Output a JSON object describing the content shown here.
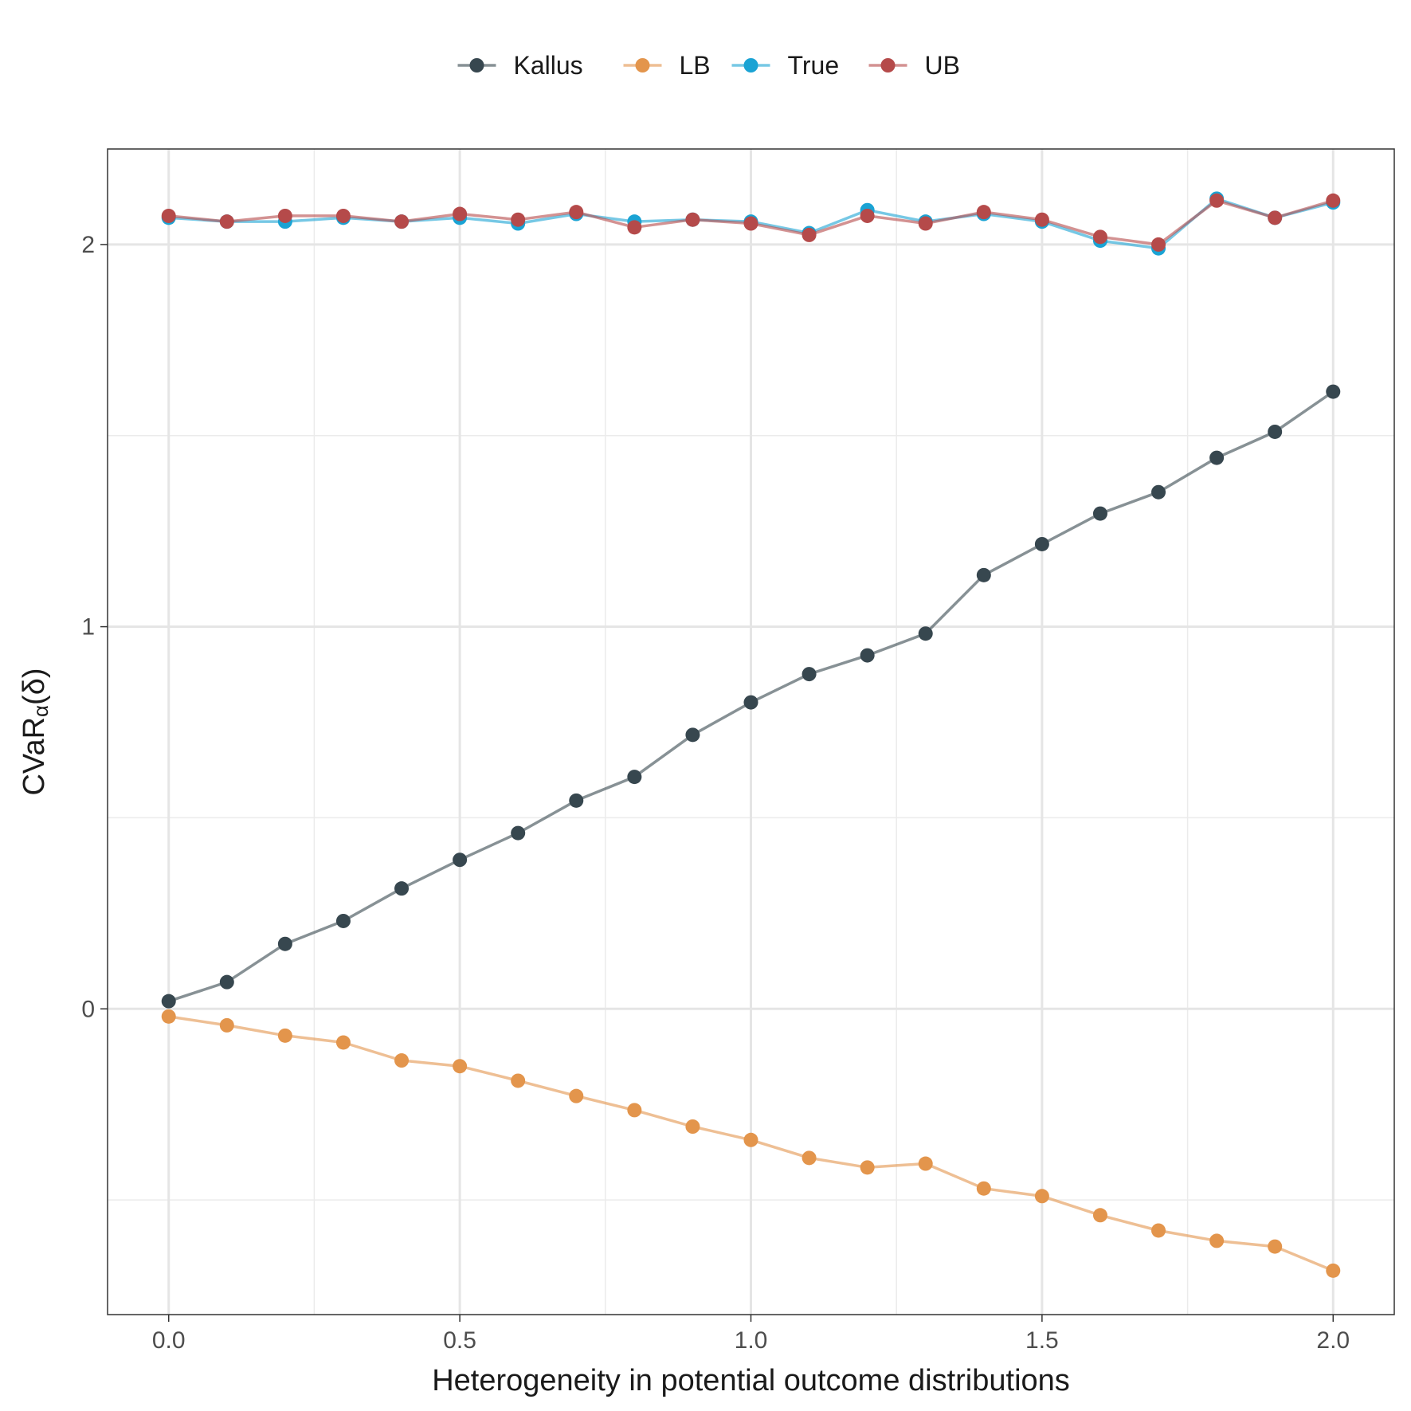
{
  "chart_data": {
    "type": "line",
    "xlabel": "Heterogeneity in potential outcome distributions",
    "ylabel_main": "CVaR",
    "ylabel_sub": "α",
    "ylabel_arg": "(δ)",
    "xlim": [
      -0.105,
      2.105
    ],
    "ylim": [
      -0.8,
      2.25
    ],
    "x_ticks": [
      0.0,
      0.5,
      1.0,
      1.5,
      2.0
    ],
    "x_tick_labels": [
      "0.0",
      "0.5",
      "1.0",
      "1.5",
      "2.0"
    ],
    "y_ticks": [
      0,
      1,
      2
    ],
    "y_tick_labels": [
      "0",
      "1",
      "2"
    ],
    "grid": true,
    "legend_position": "top",
    "x": [
      0.0,
      0.1,
      0.2,
      0.3,
      0.4,
      0.5,
      0.6,
      0.7,
      0.8,
      0.9,
      1.0,
      1.1,
      1.2,
      1.3,
      1.4,
      1.5,
      1.6,
      1.7,
      1.8,
      1.9,
      2.0
    ],
    "series": [
      {
        "name": "Kallus",
        "color": "#37474f",
        "values": [
          0.02,
          0.07,
          0.17,
          0.23,
          0.315,
          0.39,
          0.46,
          0.545,
          0.607,
          0.717,
          0.802,
          0.876,
          0.925,
          0.982,
          1.135,
          1.216,
          1.296,
          1.352,
          1.442,
          1.51,
          1.615
        ]
      },
      {
        "name": "LB",
        "color": "#e3954c",
        "values": [
          -0.02,
          -0.043,
          -0.07,
          -0.088,
          -0.135,
          -0.15,
          -0.188,
          -0.228,
          -0.265,
          -0.308,
          -0.343,
          -0.39,
          -0.415,
          -0.405,
          -0.47,
          -0.49,
          -0.54,
          -0.58,
          -0.607,
          -0.622,
          -0.685
        ]
      },
      {
        "name": "True",
        "color": "#1aa3d4",
        "values": [
          2.07,
          2.06,
          2.06,
          2.07,
          2.06,
          2.07,
          2.055,
          2.08,
          2.06,
          2.065,
          2.06,
          2.03,
          2.09,
          2.06,
          2.08,
          2.06,
          2.01,
          1.99,
          2.12,
          2.07,
          2.11
        ]
      },
      {
        "name": "UB",
        "color": "#b54a4a",
        "values": [
          2.075,
          2.06,
          2.075,
          2.075,
          2.06,
          2.08,
          2.065,
          2.085,
          2.045,
          2.065,
          2.055,
          2.025,
          2.075,
          2.055,
          2.085,
          2.065,
          2.02,
          2.0,
          2.115,
          2.07,
          2.115
        ]
      }
    ]
  }
}
